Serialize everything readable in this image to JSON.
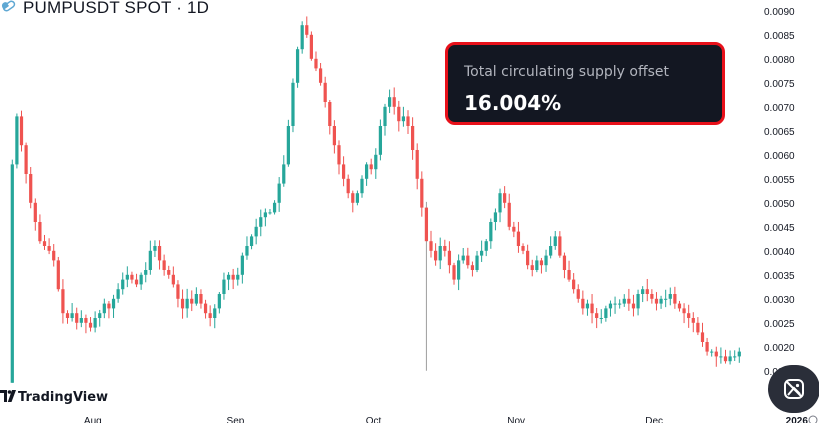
{
  "header": {
    "title": "PUMPUSDT SPOT · 1D"
  },
  "callout": {
    "label": "Total circulating supply offset",
    "value": "16.004%"
  },
  "watermark": {
    "text": "TradingView"
  },
  "colors": {
    "up": "#26a69a",
    "down": "#ef5350",
    "callout_bg": "#131722",
    "callout_border": "#e8101a"
  },
  "chart_data": {
    "type": "candlestick",
    "title": "PUMPUSDT SPOT · 1D",
    "x_ticks": [
      "Aug",
      "Sep",
      "Oct",
      "Nov",
      "Dec",
      "2026"
    ],
    "x_tick_dates": [
      "2025-08-01",
      "2025-09-01",
      "2025-10-01",
      "2025-11-01",
      "2025-12-01",
      "2026-01-01"
    ],
    "y_ticks": [
      "0.0015",
      "0.0020",
      "0.0025",
      "0.0030",
      "0.0035",
      "0.0040",
      "0.0045",
      "0.0050",
      "0.0055",
      "0.0060",
      "0.0065",
      "0.0070",
      "0.0075",
      "0.0080",
      "0.0085",
      "0.0090"
    ],
    "ylim": [
      0.0011,
      0.0091
    ],
    "x_start": "2025-07-14",
    "x_end": "2025-12-24",
    "closes": [
      0.0058,
      0.0068,
      0.0062,
      0.0056,
      0.005,
      0.0046,
      0.0042,
      0.0041,
      0.004,
      0.0038,
      0.0032,
      0.0027,
      0.0026,
      0.0027,
      0.0025,
      0.0026,
      0.0025,
      0.0024,
      0.0026,
      0.0027,
      0.0029,
      0.0028,
      0.003,
      0.0032,
      0.0034,
      0.0035,
      0.0034,
      0.0033,
      0.0035,
      0.0036,
      0.004,
      0.0041,
      0.0038,
      0.0036,
      0.0035,
      0.0033,
      0.003,
      0.0028,
      0.003,
      0.0029,
      0.0031,
      0.0029,
      0.0027,
      0.0026,
      0.0028,
      0.0031,
      0.0034,
      0.0035,
      0.0034,
      0.0035,
      0.0039,
      0.0041,
      0.0043,
      0.0045,
      0.0047,
      0.0048,
      0.0048,
      0.005,
      0.0054,
      0.0058,
      0.0066,
      0.0075,
      0.0082,
      0.0087,
      0.0085,
      0.008,
      0.0078,
      0.0075,
      0.0071,
      0.0066,
      0.0062,
      0.0058,
      0.0055,
      0.0052,
      0.005,
      0.0052,
      0.0055,
      0.0058,
      0.0057,
      0.006,
      0.0066,
      0.007,
      0.0072,
      0.007,
      0.0067,
      0.0068,
      0.0066,
      0.0061,
      0.0055,
      0.0049,
      0.0042,
      0.004,
      0.0038,
      0.0041,
      0.004,
      0.0037,
      0.0034,
      0.0038,
      0.0039,
      0.0037,
      0.0036,
      0.0039,
      0.004,
      0.0042,
      0.0046,
      0.0048,
      0.0052,
      0.005,
      0.0045,
      0.0044,
      0.0041,
      0.004,
      0.0037,
      0.0036,
      0.0038,
      0.0037,
      0.0039,
      0.0041,
      0.0043,
      0.0039,
      0.0036,
      0.0034,
      0.0032,
      0.003,
      0.0028,
      0.0029,
      0.0027,
      0.0026,
      0.0026,
      0.0028,
      0.0029,
      0.0029,
      0.0029,
      0.003,
      0.0029,
      0.0028,
      0.0031,
      0.0032,
      0.0031,
      0.003,
      0.0029,
      0.003,
      0.003,
      0.0031,
      0.0029,
      0.0028,
      0.0027,
      0.0026,
      0.0025,
      0.0023,
      0.0021,
      0.0019,
      0.0019,
      0.0018,
      0.0018,
      0.0017,
      0.0018,
      0.0018,
      0.0019
    ]
  }
}
